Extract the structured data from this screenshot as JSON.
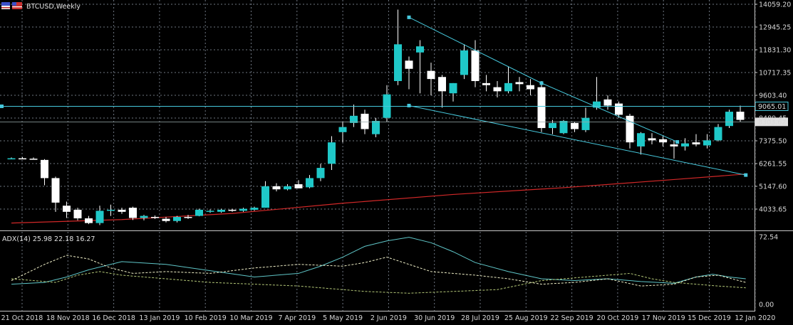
{
  "window": {
    "title": "BTCUSD,Weekly"
  },
  "icons": [
    "symbol-flag-icon",
    "window-flag-icon"
  ],
  "colors": {
    "background": "#000000",
    "grid": "#6e7681",
    "axis": "#c8c8c8",
    "bull": "#1fc8c8",
    "bear": "#ffffff",
    "trendline": "#46c8dc",
    "hline": "#46c8dc",
    "ma": "#d22828",
    "adx": "#5fc6c8",
    "plus_di": "#f0f0c8",
    "minus_di": "#b4c878"
  },
  "chart_data": [
    {
      "type": "candlestick",
      "title": "BTCUSD,Weekly",
      "ylim": [
        3450,
        14200
      ],
      "y_ticks": [
        "14059.20",
        "12945.25",
        "11831.30",
        "10717.35",
        "9603.40",
        "8489.45",
        "7375.50",
        "6261.55",
        "5147.60",
        "4033.65"
      ],
      "x_ticks": [
        "21 Oct 2018",
        "18 Nov 2018",
        "16 Dec 2018",
        "13 Jan 2019",
        "10 Feb 2019",
        "10 Mar 2019",
        "7 Apr 2019",
        "5 May 2019",
        "2 Jun 2019",
        "30 Jun 2019",
        "28 Jul 2019",
        "25 Aug 2019",
        "22 Sep 2019",
        "20 Oct 2019",
        "17 Nov 2019",
        "15 Dec 2019",
        "12 Jan 2020"
      ],
      "candles": [
        {
          "o": 6500,
          "h": 6560,
          "l": 6470,
          "c": 6520
        },
        {
          "o": 6520,
          "h": 6580,
          "l": 6500,
          "c": 6510
        },
        {
          "o": 6500,
          "h": 6560,
          "l": 6460,
          "c": 6480
        },
        {
          "o": 6440,
          "h": 6480,
          "l": 5200,
          "c": 5550
        },
        {
          "o": 5550,
          "h": 5620,
          "l": 3900,
          "c": 4350
        },
        {
          "o": 4200,
          "h": 4400,
          "l": 3600,
          "c": 3900
        },
        {
          "o": 4000,
          "h": 4100,
          "l": 3480,
          "c": 3580
        },
        {
          "o": 3580,
          "h": 3700,
          "l": 3300,
          "c": 3350
        },
        {
          "o": 3350,
          "h": 4200,
          "l": 3250,
          "c": 3950
        },
        {
          "o": 3950,
          "h": 4250,
          "l": 3700,
          "c": 4000
        },
        {
          "o": 4000,
          "h": 4100,
          "l": 3800,
          "c": 3900
        },
        {
          "o": 4100,
          "h": 4150,
          "l": 3500,
          "c": 3600
        },
        {
          "o": 3600,
          "h": 3750,
          "l": 3480,
          "c": 3700
        },
        {
          "o": 3650,
          "h": 3720,
          "l": 3550,
          "c": 3600
        },
        {
          "o": 3560,
          "h": 3650,
          "l": 3380,
          "c": 3450
        },
        {
          "o": 3450,
          "h": 3700,
          "l": 3380,
          "c": 3650
        },
        {
          "o": 3650,
          "h": 3750,
          "l": 3550,
          "c": 3600
        },
        {
          "o": 3700,
          "h": 4050,
          "l": 3680,
          "c": 4000
        },
        {
          "o": 3900,
          "h": 4020,
          "l": 3850,
          "c": 3950
        },
        {
          "o": 3900,
          "h": 4050,
          "l": 3850,
          "c": 4000
        },
        {
          "o": 4000,
          "h": 4050,
          "l": 3900,
          "c": 3950
        },
        {
          "o": 3950,
          "h": 4100,
          "l": 3900,
          "c": 4050
        },
        {
          "o": 4000,
          "h": 4150,
          "l": 3950,
          "c": 4100
        },
        {
          "o": 4100,
          "h": 5400,
          "l": 4100,
          "c": 5150
        },
        {
          "o": 5150,
          "h": 5300,
          "l": 4900,
          "c": 5000
        },
        {
          "o": 5000,
          "h": 5250,
          "l": 4950,
          "c": 5150
        },
        {
          "o": 5250,
          "h": 5450,
          "l": 5050,
          "c": 5050
        },
        {
          "o": 5100,
          "h": 5700,
          "l": 5050,
          "c": 5550
        },
        {
          "o": 5550,
          "h": 6250,
          "l": 5400,
          "c": 6050
        },
        {
          "o": 6250,
          "h": 7600,
          "l": 5950,
          "c": 7300
        },
        {
          "o": 7800,
          "h": 8300,
          "l": 7300,
          "c": 8050
        },
        {
          "o": 8250,
          "h": 9150,
          "l": 8050,
          "c": 8600
        },
        {
          "o": 8700,
          "h": 8900,
          "l": 7700,
          "c": 7950
        },
        {
          "o": 7700,
          "h": 8500,
          "l": 7550,
          "c": 8350
        },
        {
          "o": 8500,
          "h": 10100,
          "l": 8300,
          "c": 9650
        },
        {
          "o": 10300,
          "h": 13800,
          "l": 10100,
          "c": 12100
        },
        {
          "o": 11300,
          "h": 11500,
          "l": 9900,
          "c": 10900
        },
        {
          "o": 11700,
          "h": 12300,
          "l": 9700,
          "c": 12000
        },
        {
          "o": 10800,
          "h": 11200,
          "l": 9600,
          "c": 10400
        },
        {
          "o": 10500,
          "h": 10600,
          "l": 9000,
          "c": 9800
        },
        {
          "o": 9700,
          "h": 10200,
          "l": 9300,
          "c": 10200
        },
        {
          "o": 10600,
          "h": 12100,
          "l": 10400,
          "c": 11800
        },
        {
          "o": 11800,
          "h": 12300,
          "l": 10000,
          "c": 10300
        },
        {
          "o": 10200,
          "h": 10600,
          "l": 9800,
          "c": 10100
        },
        {
          "o": 10000,
          "h": 10300,
          "l": 9500,
          "c": 9800
        },
        {
          "o": 9800,
          "h": 11000,
          "l": 9700,
          "c": 10200
        },
        {
          "o": 10250,
          "h": 10500,
          "l": 9800,
          "c": 10150
        },
        {
          "o": 10100,
          "h": 10400,
          "l": 9600,
          "c": 9900
        },
        {
          "o": 10000,
          "h": 10300,
          "l": 7800,
          "c": 8000
        },
        {
          "o": 8000,
          "h": 8400,
          "l": 7700,
          "c": 8250
        },
        {
          "o": 7750,
          "h": 8400,
          "l": 7700,
          "c": 8350
        },
        {
          "o": 8250,
          "h": 8300,
          "l": 7800,
          "c": 7950
        },
        {
          "o": 7900,
          "h": 9000,
          "l": 7800,
          "c": 8500
        },
        {
          "o": 9000,
          "h": 10500,
          "l": 8900,
          "c": 9300
        },
        {
          "o": 9400,
          "h": 9600,
          "l": 8900,
          "c": 9100
        },
        {
          "o": 9200,
          "h": 9300,
          "l": 8500,
          "c": 8650
        },
        {
          "o": 8600,
          "h": 8700,
          "l": 7000,
          "c": 7300
        },
        {
          "o": 7100,
          "h": 7800,
          "l": 6700,
          "c": 7750
        },
        {
          "o": 7500,
          "h": 7750,
          "l": 7200,
          "c": 7400
        },
        {
          "o": 7450,
          "h": 7600,
          "l": 7100,
          "c": 7300
        },
        {
          "o": 7200,
          "h": 7400,
          "l": 6500,
          "c": 7100
        },
        {
          "o": 7100,
          "h": 7500,
          "l": 6900,
          "c": 7250
        },
        {
          "o": 7300,
          "h": 7700,
          "l": 7100,
          "c": 7200
        },
        {
          "o": 7150,
          "h": 7700,
          "l": 7000,
          "c": 7400
        },
        {
          "o": 7400,
          "h": 8200,
          "l": 7350,
          "c": 8050
        },
        {
          "o": 8100,
          "h": 8900,
          "l": 8000,
          "c": 8800
        },
        {
          "o": 8800,
          "h": 9100,
          "l": 8300,
          "c": 8400
        }
      ],
      "lines": [
        {
          "name": "upper-trendline",
          "points": [
            [
              36,
              13420
            ],
            [
              48,
              10200
            ],
            [
              60.3,
              7320
            ]
          ],
          "endpoint_markers": true
        },
        {
          "name": "lower-trendline",
          "points": [
            [
              36,
              9100
            ],
            [
              66.5,
              5700
            ]
          ],
          "endpoint_markers": true
        },
        {
          "name": "horizontal-level",
          "y": 9065.01,
          "label": "9065.01"
        }
      ],
      "price_tag": {
        "value": "8303.62",
        "y": 8303.62
      },
      "ma_line": [
        [
          0,
          3350
        ],
        [
          10,
          3520
        ],
        [
          20,
          3820
        ],
        [
          30,
          4320
        ],
        [
          40,
          4750
        ],
        [
          50,
          5080
        ],
        [
          60,
          5480
        ],
        [
          66.5,
          5750
        ]
      ]
    },
    {
      "type": "line",
      "title": "ADX(14) 25.98 22.18 16.27",
      "ylim": [
        0,
        72.54
      ],
      "y_ticks": [
        "72.54",
        "0.00"
      ],
      "series": [
        {
          "name": "ADX",
          "values": [
            [
              0,
              20
            ],
            [
              3,
              22
            ],
            [
              5,
              28
            ],
            [
              7,
              36
            ],
            [
              10,
              45
            ],
            [
              14,
              42
            ],
            [
              18,
              35
            ],
            [
              22,
              28
            ],
            [
              26,
              32
            ],
            [
              28,
              40
            ],
            [
              30,
              50
            ],
            [
              32,
              62
            ],
            [
              34,
              68
            ],
            [
              36,
              72
            ],
            [
              38,
              66
            ],
            [
              40,
              56
            ],
            [
              42,
              44
            ],
            [
              45,
              34
            ],
            [
              48,
              26
            ],
            [
              51,
              24
            ],
            [
              54,
              26
            ],
            [
              57,
              23
            ],
            [
              60,
              21
            ],
            [
              62,
              28
            ],
            [
              63.5,
              31
            ],
            [
              65,
              28
            ],
            [
              66.5,
              26
            ]
          ]
        },
        {
          "name": "+DI",
          "values": [
            [
              0,
              24
            ],
            [
              3,
              42
            ],
            [
              5,
              52
            ],
            [
              7,
              48
            ],
            [
              9,
              38
            ],
            [
              11,
              32
            ],
            [
              14,
              34
            ],
            [
              18,
              32
            ],
            [
              22,
              38
            ],
            [
              26,
              42
            ],
            [
              30,
              40
            ],
            [
              32,
              44
            ],
            [
              34,
              50
            ],
            [
              36,
              42
            ],
            [
              38,
              34
            ],
            [
              42,
              30
            ],
            [
              45,
              26
            ],
            [
              48,
              20
            ],
            [
              51,
              22
            ],
            [
              54,
              26
            ],
            [
              57,
              18
            ],
            [
              60,
              20
            ],
            [
              62,
              28
            ],
            [
              64,
              30
            ],
            [
              66.5,
              22
            ]
          ]
        },
        {
          "name": "-DI",
          "values": [
            [
              0,
              26
            ],
            [
              2,
              24
            ],
            [
              4,
              22
            ],
            [
              6,
              30
            ],
            [
              8,
              34
            ],
            [
              10,
              30
            ],
            [
              14,
              26
            ],
            [
              18,
              22
            ],
            [
              22,
              20
            ],
            [
              26,
              18
            ],
            [
              30,
              14
            ],
            [
              32,
              12
            ],
            [
              36,
              10
            ],
            [
              40,
              12
            ],
            [
              44,
              14
            ],
            [
              48,
              24
            ],
            [
              52,
              28
            ],
            [
              56,
              32
            ],
            [
              58,
              26
            ],
            [
              60,
              22
            ],
            [
              62,
              20
            ],
            [
              64,
              18
            ],
            [
              66.5,
              16
            ]
          ]
        }
      ]
    }
  ]
}
